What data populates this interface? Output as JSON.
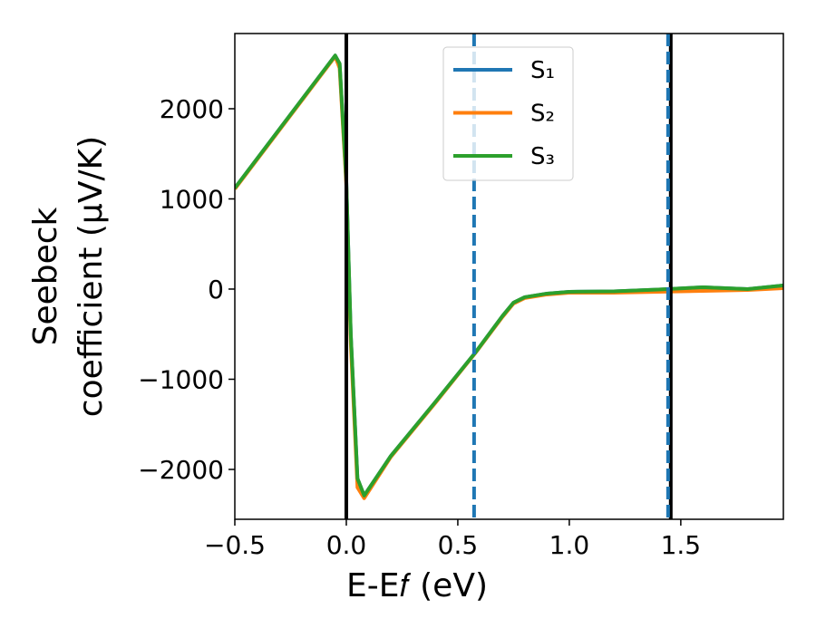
{
  "chart_data": {
    "type": "line",
    "xlabel": "E-E𝑓 (eV)",
    "ylabel": [
      "Seebeck",
      "coefficient  (μV/K)"
    ],
    "xlim": [
      -0.5,
      1.96
    ],
    "ylim": [
      -2553,
      2834
    ],
    "xticks": [
      {
        "value": -0.5,
        "label": "−0.5"
      },
      {
        "value": 0,
        "label": "0.0"
      },
      {
        "value": 0.5,
        "label": "0.5"
      },
      {
        "value": 1,
        "label": "1.0"
      },
      {
        "value": 1.5,
        "label": "1.5"
      }
    ],
    "yticks": [
      {
        "value": -2000,
        "label": "−2000"
      },
      {
        "value": -1000,
        "label": "−1000"
      },
      0,
      1000,
      2000
    ],
    "legend": "upper center",
    "vlines": [
      {
        "x": 0,
        "color": "#000000",
        "style": "solid"
      },
      {
        "x": 1.455,
        "color": "#000000",
        "style": "solid"
      },
      {
        "x": 0.573,
        "color": "#1f77b4",
        "style": "dashed"
      },
      {
        "x": 1.443,
        "color": "#1f77b4",
        "style": "dashed"
      }
    ],
    "x": [
      -0.5,
      -0.05,
      -0.03,
      0.0,
      0.02,
      0.05,
      0.08,
      0.2,
      0.4,
      0.58,
      0.7,
      0.75,
      0.8,
      0.9,
      1.0,
      1.2,
      1.4,
      1.6,
      1.8,
      1.96
    ],
    "series": [
      {
        "name": "S₁",
        "color": "#1f77b4",
        "values": [
          1120,
          2590,
          2500,
          1200,
          -500,
          -2100,
          -2290,
          -1850,
          -1250,
          -700,
          -300,
          -150,
          -90,
          -50,
          -30,
          -25,
          -5,
          20,
          0,
          40
        ]
      },
      {
        "name": "S₂",
        "color": "#ff7f0e",
        "values": [
          1110,
          2580,
          2450,
          1150,
          -600,
          -2200,
          -2320,
          -1860,
          -1260,
          -705,
          -310,
          -160,
          -100,
          -60,
          -40,
          -40,
          -30,
          -20,
          -10,
          10
        ]
      },
      {
        "name": "S₃",
        "color": "#2ca02c",
        "values": [
          1120,
          2590,
          2500,
          1200,
          -500,
          -2100,
          -2290,
          -1850,
          -1250,
          -700,
          -300,
          -150,
          -90,
          -50,
          -30,
          -25,
          -5,
          20,
          0,
          40
        ]
      }
    ]
  }
}
